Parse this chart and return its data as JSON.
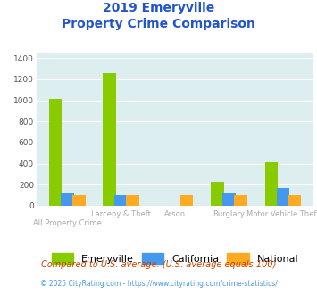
{
  "title_line1": "2019 Emeryville",
  "title_line2": "Property Crime Comparison",
  "categories": [
    "All Property Crime",
    "Larceny & Theft",
    "Arson",
    "Burglary",
    "Motor Vehicle Theft"
  ],
  "cat_labels_upper": [
    "",
    "Larceny & Theft",
    "Arson",
    "Burglary",
    "Motor Vehicle Theft"
  ],
  "cat_labels_lower": [
    "All Property Crime",
    "",
    "",
    "",
    ""
  ],
  "emeryville": [
    1010,
    1260,
    0,
    225,
    415
  ],
  "california": [
    120,
    100,
    0,
    115,
    165
  ],
  "national": [
    100,
    100,
    100,
    100,
    100
  ],
  "colors": {
    "emeryville": "#88cc00",
    "california": "#4499ee",
    "national": "#ffaa22"
  },
  "ylim": [
    0,
    1450
  ],
  "yticks": [
    0,
    200,
    400,
    600,
    800,
    1000,
    1200,
    1400
  ],
  "bg_color": "#ddeef0",
  "legend_labels": [
    "Emeryville",
    "California",
    "National"
  ],
  "footnote1": "Compared to U.S. average. (U.S. average equals 100)",
  "footnote2": "© 2025 CityRating.com - https://www.cityrating.com/crime-statistics/",
  "title_color": "#2255cc",
  "cat_label_color": "#aaaaaa",
  "footnote1_color": "#cc4400",
  "footnote2_color": "#4499ee"
}
